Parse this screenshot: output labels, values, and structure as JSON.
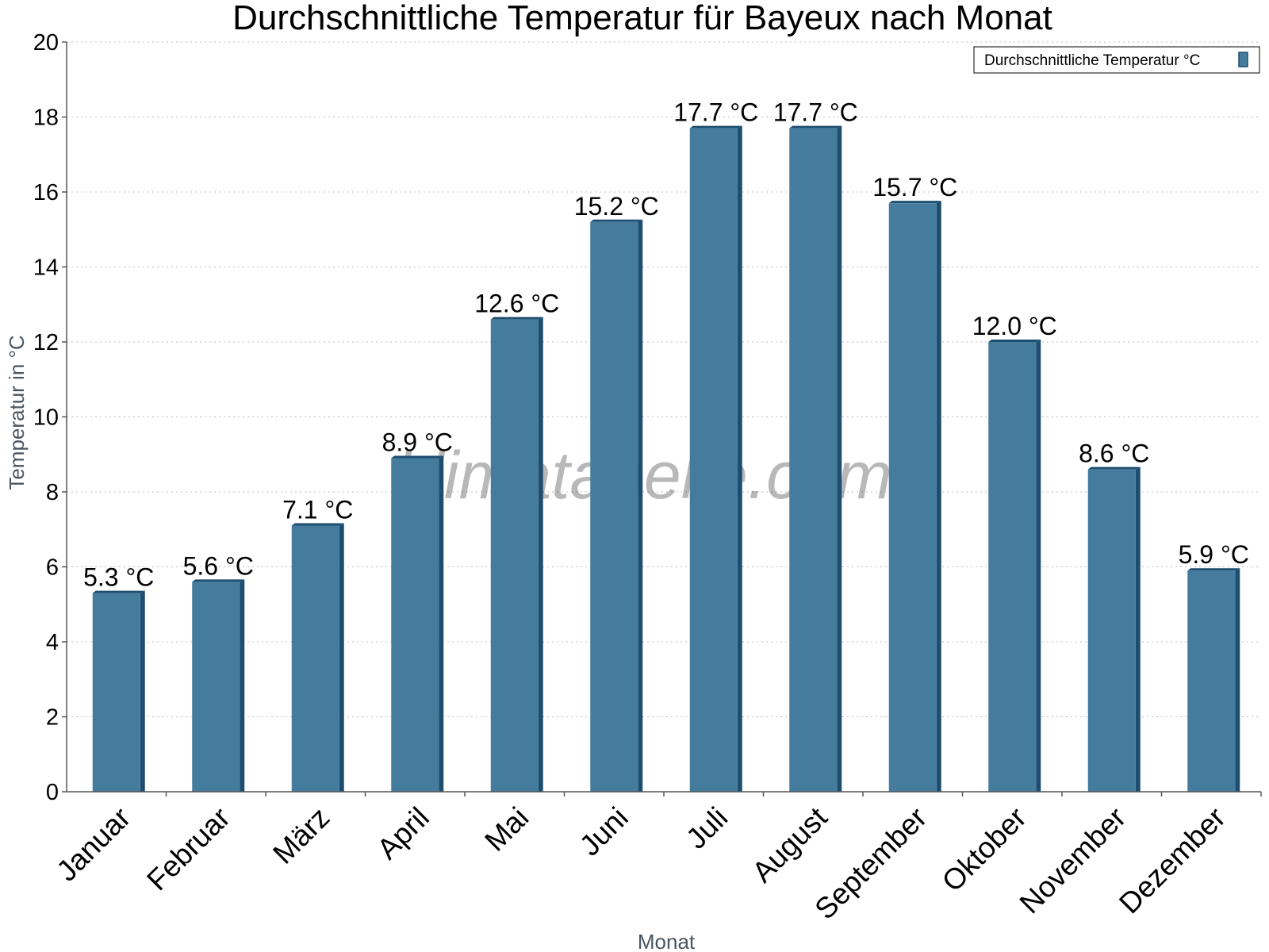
{
  "chart_data": {
    "type": "bar",
    "title": "Durchschnittliche Temperatur für Bayeux nach Monat",
    "xlabel": "Monat",
    "ylabel": "Temperatur in °C",
    "categories": [
      "Januar",
      "Februar",
      "März",
      "April",
      "Mai",
      "Juni",
      "Juli",
      "August",
      "September",
      "Oktober",
      "November",
      "Dezember"
    ],
    "series": [
      {
        "name": "Durchschnittliche Temperatur °C",
        "values": [
          5.3,
          5.6,
          7.1,
          8.9,
          12.6,
          15.2,
          17.7,
          17.7,
          15.7,
          12.0,
          8.6,
          5.9
        ],
        "labels": [
          "5.3 °C",
          "5.6 °C",
          "7.1 °C",
          "8.9 °C",
          "12.6 °C",
          "15.2 °C",
          "17.7 °C",
          "17.7 °C",
          "15.7 °C",
          "12.0 °C",
          "8.6 °C",
          "5.9 °C"
        ],
        "color": "#457b9d",
        "edge_color": "#1d4e70"
      }
    ],
    "ylim": [
      0,
      20
    ],
    "yticks": [
      0,
      2,
      4,
      6,
      8,
      10,
      12,
      14,
      16,
      18,
      20
    ],
    "grid": true,
    "legend_position": "top-right",
    "watermark": "klimatabelle.com"
  }
}
